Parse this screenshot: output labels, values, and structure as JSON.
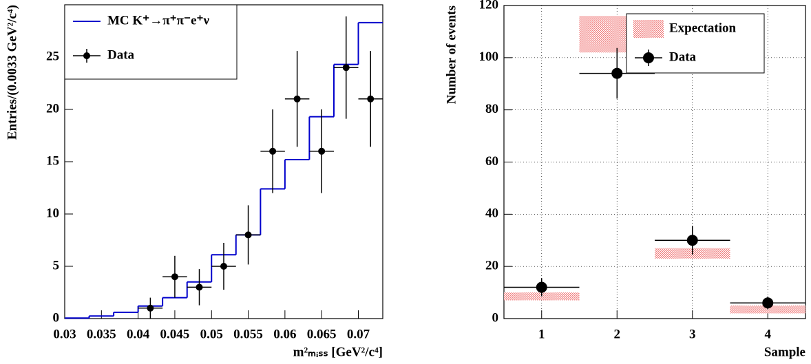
{
  "chart_data": [
    {
      "type": "histogram",
      "bins": [
        0.03,
        0.03333,
        0.03667,
        0.04,
        0.04333,
        0.04667,
        0.05,
        0.05333,
        0.05667,
        0.06,
        0.06333,
        0.06667,
        0.07,
        0.07333
      ],
      "series": [
        {
          "name": "MC K⁺→π⁺π⁻e⁺ν",
          "color": "#0000cc",
          "values": [
            0.05,
            0.25,
            0.6,
            1.2,
            2.0,
            3.5,
            6.1,
            8.0,
            12.4,
            15.2,
            19.3,
            24.3,
            28.3
          ]
        },
        {
          "name": "Data",
          "color": "#000000",
          "values": [
            null,
            null,
            null,
            1,
            4,
            3,
            5,
            8,
            16,
            21,
            16,
            24,
            21
          ],
          "errors": [
            null,
            null,
            null,
            1,
            2,
            1.73,
            2.24,
            2.83,
            4,
            4.58,
            4,
            4.9,
            4.58
          ]
        }
      ],
      "xlim": [
        0.03,
        0.07333
      ],
      "ylim": [
        0,
        30
      ],
      "xticks": [
        0.03,
        0.035,
        0.04,
        0.045,
        0.05,
        0.055,
        0.06,
        0.065,
        0.07
      ],
      "yticks": [
        0,
        5,
        10,
        15,
        20,
        25
      ],
      "x_label": "m²ₘᵢₛₛ [GeV²/c⁴]",
      "y_label": "Entries/(0.0033 GeV²/c⁴)",
      "legend": "top-left",
      "grid": false
    },
    {
      "type": "errorbar",
      "x": [
        1,
        2,
        3,
        4
      ],
      "x_errors": [
        0.5,
        0.5,
        0.5,
        0.5
      ],
      "series": [
        {
          "name": "Expectation",
          "color": "#f08080",
          "low": [
            7,
            102,
            23,
            2
          ],
          "high": [
            10,
            116,
            27,
            5
          ]
        },
        {
          "name": "Data",
          "color": "#000000",
          "values": [
            12,
            94,
            30,
            6
          ],
          "errors": [
            3.46,
            9.7,
            5.48,
            2.45
          ]
        }
      ],
      "xlim": [
        0.5,
        4.5
      ],
      "ylim": [
        0,
        120
      ],
      "xticks": [
        1,
        2,
        3,
        4
      ],
      "yticks": [
        0,
        20,
        40,
        60,
        80,
        100,
        120
      ],
      "x_label": "Sample",
      "y_label": "Number of events",
      "legend": "top-right",
      "grid": true
    }
  ]
}
